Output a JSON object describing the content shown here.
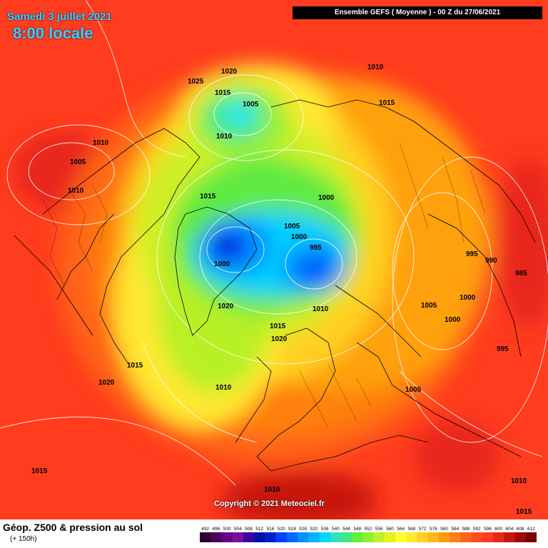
{
  "header": {
    "date": "Samedi 3 juillet 2021",
    "local_time": "8:00 locale",
    "model_run": "Ensemble GEFS  ( Moyenne )  -  00 Z du 27/06/2021"
  },
  "copyright": "Copyright © 2021 Meteociel.fr",
  "footer": {
    "title": "Géop. Z500 & pression au sol",
    "lead_time": "(+ 150h)"
  },
  "legend": {
    "values": [
      "492",
      "496",
      "500",
      "504",
      "508",
      "512",
      "516",
      "520",
      "524",
      "528",
      "532",
      "536",
      "540",
      "544",
      "548",
      "552",
      "556",
      "560",
      "564",
      "568",
      "572",
      "576",
      "580",
      "584",
      "588",
      "592",
      "596",
      "600",
      "604",
      "608",
      "612"
    ],
    "colors": [
      "#2a0030",
      "#4a0060",
      "#680088",
      "#7a1098",
      "#4000a0",
      "#0010a8",
      "#0020d0",
      "#0040ff",
      "#0068ff",
      "#0090ff",
      "#00b4ff",
      "#00d8ff",
      "#30e0c0",
      "#40e880",
      "#60f040",
      "#90f030",
      "#c0f028",
      "#e8f020",
      "#ffff30",
      "#ffe830",
      "#ffd020",
      "#ffb818",
      "#ff9c10",
      "#ff8010",
      "#ff6418",
      "#ff4c1e",
      "#ff3c20",
      "#e82818",
      "#c81410",
      "#a00808",
      "#780000"
    ]
  },
  "pressure_labels": [
    {
      "text": "1025"
    },
    {
      "text": "1020"
    },
    {
      "text": "1010"
    },
    {
      "text": "1015"
    },
    {
      "text": "1005"
    },
    {
      "text": "1010"
    },
    {
      "text": "1015"
    },
    {
      "text": "1010"
    },
    {
      "text": "1005"
    },
    {
      "text": "1010"
    },
    {
      "text": "1015"
    },
    {
      "text": "1000"
    },
    {
      "text": "1005"
    },
    {
      "text": "1000"
    },
    {
      "text": "995"
    },
    {
      "text": "1000"
    },
    {
      "text": "995"
    },
    {
      "text": "990"
    },
    {
      "text": "985"
    },
    {
      "text": "1000"
    },
    {
      "text": "1020"
    },
    {
      "text": "1010"
    },
    {
      "text": "1015"
    },
    {
      "text": "1020"
    },
    {
      "text": "1005"
    },
    {
      "text": "1000"
    },
    {
      "text": "995"
    },
    {
      "text": "1015"
    },
    {
      "text": "1020"
    },
    {
      "text": "1010"
    },
    {
      "text": "1005"
    },
    {
      "text": "1015"
    },
    {
      "text": "1010"
    },
    {
      "text": "1010"
    },
    {
      "text": "1015"
    }
  ]
}
